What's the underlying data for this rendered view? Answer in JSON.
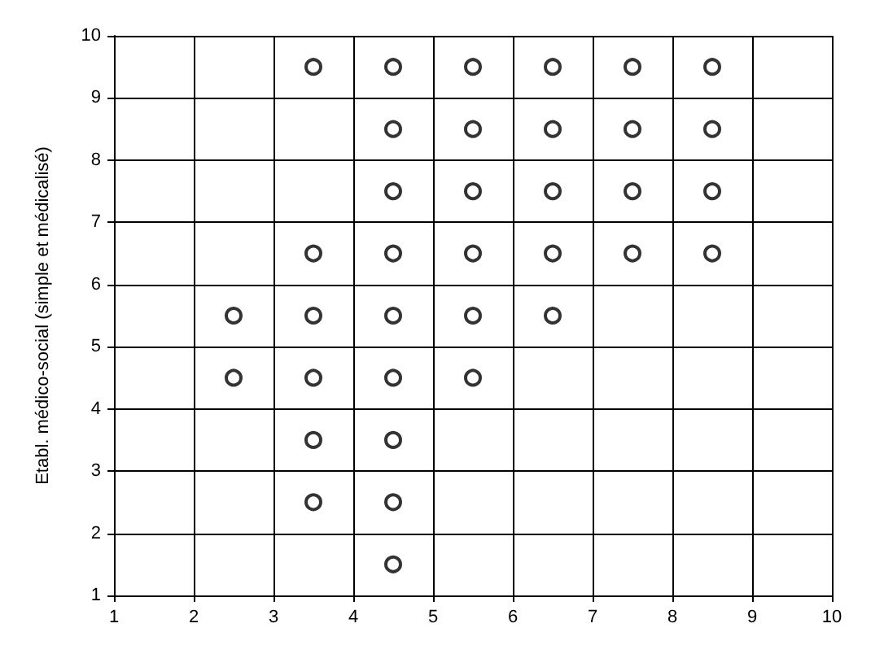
{
  "chart_data": {
    "type": "scatter",
    "ylabel": "Etabl. médico-social (simple et médicalisé)",
    "x": [
      2.5,
      2.5,
      3.5,
      3.5,
      3.5,
      3.5,
      3.5,
      3.5,
      4.5,
      4.5,
      4.5,
      4.5,
      4.5,
      4.5,
      4.5,
      4.5,
      4.5,
      5.5,
      5.5,
      5.5,
      5.5,
      5.5,
      5.5,
      6.5,
      6.5,
      6.5,
      6.5,
      6.5,
      7.5,
      7.5,
      7.5,
      7.5,
      8.5,
      8.5,
      8.5,
      8.5
    ],
    "values": [
      5.5,
      4.5,
      9.5,
      6.5,
      5.5,
      4.5,
      3.5,
      2.5,
      9.5,
      8.5,
      7.5,
      6.5,
      5.5,
      4.5,
      3.5,
      2.5,
      1.5,
      9.5,
      8.5,
      7.5,
      6.5,
      5.5,
      4.5,
      9.5,
      8.5,
      7.5,
      6.5,
      5.5,
      9.5,
      8.5,
      7.5,
      6.5,
      9.5,
      8.5,
      7.5,
      6.5
    ],
    "color": "#000000",
    "marker": "circle",
    "grid": true,
    "xlim": [
      1,
      10
    ],
    "xticks": [
      1,
      2,
      3,
      4,
      5,
      6,
      7,
      8,
      9,
      10
    ],
    "ylim": [
      1,
      10
    ],
    "yticks": [
      1,
      2,
      3,
      4,
      5,
      6,
      7,
      8,
      9,
      10
    ]
  }
}
